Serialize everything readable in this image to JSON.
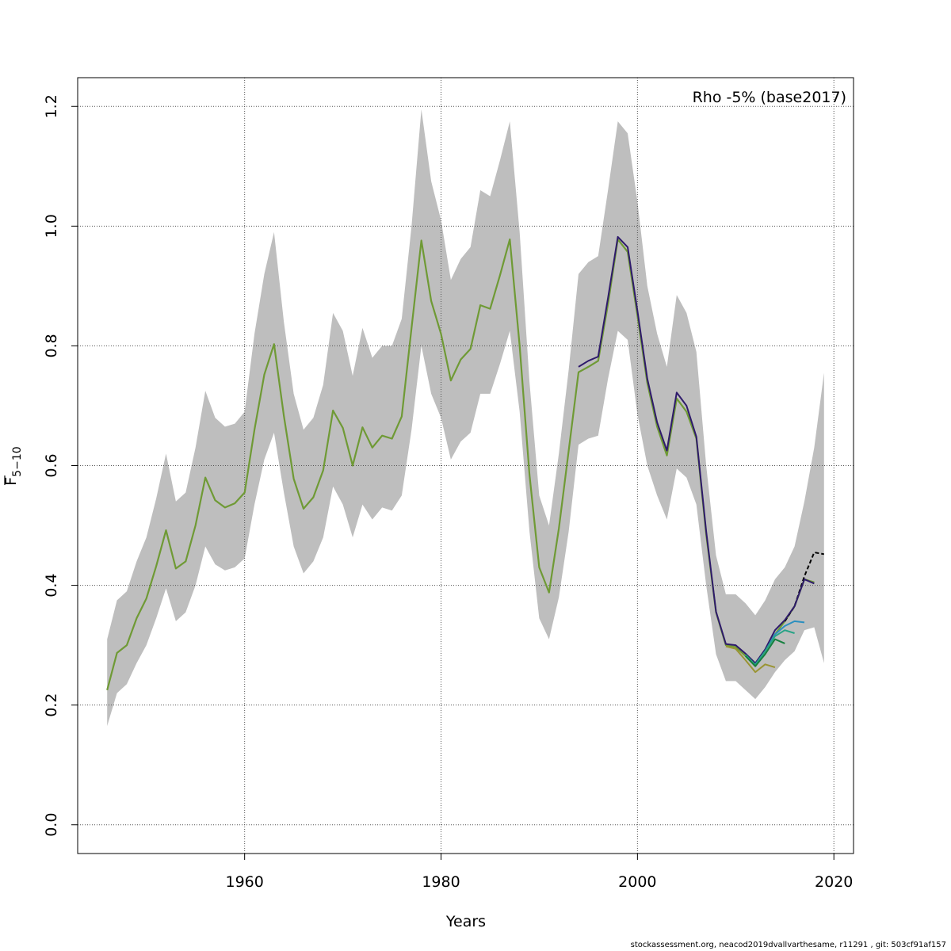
{
  "chart_data": {
    "type": "line",
    "annotation": "Rho -5% (base2017)",
    "xlabel": "Years",
    "ylabel_main": "F",
    "ylabel_sub": "5−10",
    "xlim": [
      1943,
      2022
    ],
    "ylim": [
      -0.048,
      1.248
    ],
    "x_ticks": [
      1960,
      1980,
      2000,
      2020
    ],
    "y_ticks": [
      0.0,
      0.2,
      0.4,
      0.6,
      0.8,
      1.0,
      1.2
    ],
    "x_tick_labels": [
      "1960",
      "1980",
      "2000",
      "2020"
    ],
    "y_tick_labels": [
      "0.0",
      "0.2",
      "0.4",
      "0.6",
      "0.8",
      "1.0",
      "1.2"
    ],
    "grid": true,
    "colors": {
      "band": "#bebebe",
      "peel_1": "#000000",
      "peel_2": "#2e1a6b",
      "peel_3": "#2b8fbf",
      "peel_4": "#28a386",
      "peel_5": "#16803f",
      "peel_6": "#9a9433",
      "base_line": "#6f9a35"
    },
    "years": [
      1946,
      1947,
      1948,
      1949,
      1950,
      1951,
      1952,
      1953,
      1954,
      1955,
      1956,
      1957,
      1958,
      1959,
      1960,
      1961,
      1962,
      1963,
      1964,
      1965,
      1966,
      1967,
      1968,
      1969,
      1970,
      1971,
      1972,
      1973,
      1974,
      1975,
      1976,
      1977,
      1978,
      1979,
      1980,
      1981,
      1982,
      1983,
      1984,
      1985,
      1986,
      1987,
      1988,
      1989,
      1990,
      1991,
      1992,
      1993,
      1994,
      1995,
      1996,
      1997,
      1998,
      1999,
      2000,
      2001,
      2002,
      2003,
      2004,
      2005,
      2006,
      2007,
      2008,
      2009,
      2010,
      2011,
      2012,
      2013,
      2014,
      2015,
      2016,
      2017,
      2018,
      2019
    ],
    "ci_upper": [
      0.31,
      0.375,
      0.39,
      0.44,
      0.48,
      0.545,
      0.62,
      0.54,
      0.555,
      0.63,
      0.725,
      0.68,
      0.665,
      0.67,
      0.69,
      0.82,
      0.92,
      0.99,
      0.84,
      0.72,
      0.66,
      0.68,
      0.735,
      0.855,
      0.825,
      0.75,
      0.83,
      0.78,
      0.8,
      0.8,
      0.845,
      1.0,
      1.195,
      1.075,
      1.01,
      0.91,
      0.945,
      0.965,
      1.06,
      1.05,
      1.11,
      1.175,
      0.99,
      0.74,
      0.55,
      0.5,
      0.62,
      0.76,
      0.92,
      0.94,
      0.95,
      1.06,
      1.175,
      1.155,
      1.04,
      0.9,
      0.82,
      0.765,
      0.885,
      0.855,
      0.79,
      0.6,
      0.45,
      0.385,
      0.385,
      0.37,
      0.35,
      0.375,
      0.41,
      0.43,
      0.465,
      0.54,
      0.63,
      0.755
    ],
    "ci_lower": [
      0.165,
      0.22,
      0.235,
      0.27,
      0.3,
      0.345,
      0.395,
      0.34,
      0.355,
      0.4,
      0.465,
      0.435,
      0.425,
      0.43,
      0.445,
      0.535,
      0.61,
      0.655,
      0.555,
      0.465,
      0.42,
      0.44,
      0.48,
      0.565,
      0.535,
      0.48,
      0.535,
      0.51,
      0.53,
      0.525,
      0.55,
      0.66,
      0.8,
      0.72,
      0.68,
      0.61,
      0.64,
      0.655,
      0.72,
      0.72,
      0.77,
      0.825,
      0.69,
      0.49,
      0.345,
      0.31,
      0.38,
      0.49,
      0.635,
      0.645,
      0.65,
      0.745,
      0.825,
      0.81,
      0.685,
      0.6,
      0.55,
      0.51,
      0.595,
      0.58,
      0.535,
      0.4,
      0.285,
      0.24,
      0.24,
      0.225,
      0.21,
      0.23,
      0.255,
      0.275,
      0.29,
      0.325,
      0.33,
      0.27
    ],
    "base_values": [
      0.225,
      0.287,
      0.3,
      0.345,
      0.378,
      0.432,
      0.492,
      0.428,
      0.44,
      0.5,
      0.58,
      0.542,
      0.53,
      0.537,
      0.555,
      0.66,
      0.752,
      0.803,
      0.683,
      0.578,
      0.528,
      0.547,
      0.592,
      0.692,
      0.663,
      0.6,
      0.664,
      0.63,
      0.65,
      0.645,
      0.682,
      0.83,
      0.976,
      0.875,
      0.82,
      0.742,
      0.777,
      0.795,
      0.868,
      0.862,
      0.918,
      0.978,
      0.8,
      0.585,
      0.43,
      0.388,
      0.495,
      0.625,
      0.756,
      0.765,
      0.775,
      0.87,
      0.978,
      0.957,
      0.85,
      0.738,
      0.665,
      0.617,
      0.712,
      0.69,
      0.645,
      0.485,
      0.355,
      0.3,
      0.297,
      0.282,
      0.265,
      0.29,
      0.318,
      0.34,
      0.365,
      0.41,
      0.405,
      null
    ],
    "series": [
      {
        "color_key": "peel_1",
        "dashed": true,
        "x": [
          2015,
          2016,
          2017,
          2018,
          2019
        ],
        "y": [
          0.34,
          0.365,
          0.415,
          0.455,
          0.452
        ]
      },
      {
        "color_key": "peel_2",
        "dashed": false,
        "x": [
          1994,
          1995,
          1996,
          1997,
          1998,
          1999,
          2000,
          2001,
          2002,
          2003,
          2004,
          2005,
          2006,
          2007,
          2008,
          2009,
          2010,
          2011,
          2012,
          2013,
          2014,
          2015,
          2016,
          2017,
          2018
        ],
        "y": [
          0.765,
          0.775,
          0.782,
          0.88,
          0.982,
          0.965,
          0.858,
          0.745,
          0.672,
          0.625,
          0.722,
          0.7,
          0.648,
          0.49,
          0.356,
          0.302,
          0.3,
          0.286,
          0.27,
          0.293,
          0.325,
          0.342,
          0.365,
          0.41,
          0.403
        ]
      },
      {
        "color_key": "peel_3",
        "dashed": false,
        "x": [
          2012,
          2013,
          2014,
          2015,
          2016,
          2017
        ],
        "y": [
          0.268,
          0.29,
          0.318,
          0.332,
          0.34,
          0.338
        ]
      },
      {
        "color_key": "peel_4",
        "dashed": false,
        "x": [
          2011,
          2012,
          2013,
          2014,
          2015,
          2016
        ],
        "y": [
          0.284,
          0.267,
          0.29,
          0.315,
          0.325,
          0.32
        ]
      },
      {
        "color_key": "peel_5",
        "dashed": false,
        "x": [
          2011,
          2012,
          2013,
          2014,
          2015
        ],
        "y": [
          0.282,
          0.265,
          0.285,
          0.31,
          0.303
        ]
      },
      {
        "color_key": "peel_6",
        "dashed": false,
        "x": [
          2009,
          2010,
          2011,
          2012,
          2013,
          2014
        ],
        "y": [
          0.298,
          0.294,
          0.275,
          0.255,
          0.268,
          0.263
        ]
      }
    ]
  },
  "footer_text": "stockassessment.org, neacod2019dvallvarthesame, r11291 , git: 503cf91af157"
}
